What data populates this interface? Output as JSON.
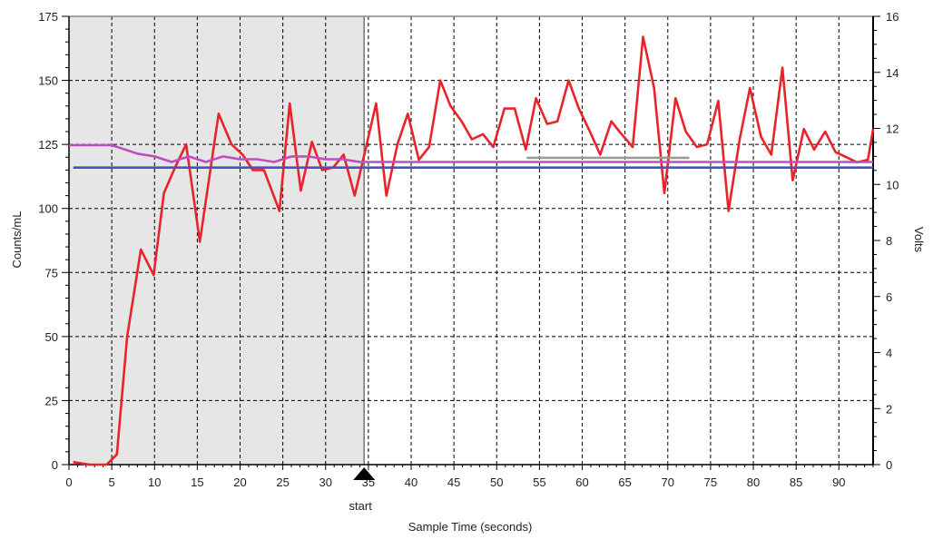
{
  "chart_data": {
    "type": "line",
    "xlabel": "Sample Time (seconds)",
    "ylabel": "Counts/mL",
    "y2label": "Volts",
    "xlim": [
      0,
      94
    ],
    "ylim": [
      0,
      175
    ],
    "y2lim": [
      0,
      16
    ],
    "grid": true,
    "x_ticks": [
      0,
      5,
      10,
      15,
      20,
      25,
      30,
      35,
      40,
      45,
      50,
      55,
      60,
      65,
      70,
      75,
      80,
      85,
      90
    ],
    "y_ticks": [
      0,
      25,
      50,
      75,
      100,
      125,
      150,
      175
    ],
    "y2_ticks": [
      0,
      2,
      4,
      6,
      8,
      10,
      12,
      14,
      16
    ],
    "shaded_region": {
      "x_start": 0,
      "x_end": 34.5
    },
    "start_marker": {
      "x": 34.5,
      "label": "start"
    },
    "series": [
      {
        "axis": "left",
        "color": "#e8232a",
        "x": [
          0.5,
          2.4,
          4.4,
          5.6,
          6.8,
          8.4,
          9.9,
          11.1,
          12.4,
          13.7,
          15.3,
          17.5,
          19.0,
          20.3,
          21.5,
          22.8,
          24.6,
          25.8,
          27.1,
          28.4,
          29.6,
          30.9,
          32.1,
          33.4,
          34.6,
          35.9,
          37.1,
          38.4,
          39.6,
          40.9,
          42.1,
          43.4,
          44.6,
          45.9,
          47.1,
          48.4,
          49.6,
          50.9,
          52.1,
          53.4,
          54.6,
          55.9,
          57.1,
          58.4,
          59.6,
          60.9,
          62.1,
          63.4,
          64.6,
          65.9,
          67.1,
          68.4,
          69.6,
          70.9,
          72.1,
          73.4,
          74.6,
          75.9,
          77.1,
          78.4,
          79.6,
          80.9,
          82.1,
          83.4,
          84.6,
          85.9,
          87.1,
          88.4,
          89.6,
          90.9,
          92.1,
          93.4,
          94.0
        ],
        "values": [
          1,
          0,
          0,
          4,
          50,
          84,
          74,
          106,
          116,
          125,
          87,
          137,
          125,
          121,
          115,
          115,
          99,
          141,
          107,
          126,
          115,
          116,
          121,
          105,
          122,
          141,
          105,
          125,
          137,
          119,
          124,
          150,
          140,
          134,
          127,
          129,
          124,
          139,
          139,
          123,
          143,
          133,
          134,
          150,
          139,
          130,
          121,
          134,
          129,
          124,
          167,
          147,
          106,
          143,
          130,
          124,
          125,
          142,
          99,
          127,
          147,
          128,
          121,
          155,
          111,
          131,
          123,
          130,
          122,
          120,
          118,
          119,
          131
        ]
      },
      {
        "axis": "right",
        "color": "#c04dbf",
        "x": [
          0,
          2,
          5,
          8,
          10,
          12,
          14,
          16,
          18,
          20,
          22,
          24,
          26,
          28,
          30,
          32,
          34,
          40,
          50,
          60,
          70,
          80,
          94
        ],
        "values": [
          11.4,
          11.4,
          11.4,
          11.1,
          11.0,
          10.8,
          11.0,
          10.8,
          11.0,
          10.9,
          10.9,
          10.8,
          11.0,
          11.0,
          10.9,
          10.9,
          10.8,
          10.8,
          10.8,
          10.8,
          10.8,
          10.8,
          10.8
        ]
      },
      {
        "axis": "right",
        "color": "#4c4fbf",
        "x": [
          0.5,
          94
        ],
        "values": [
          10.6,
          10.6
        ]
      },
      {
        "axis": "right",
        "color": "#9a9a9a",
        "x": [
          53.5,
          72.5
        ],
        "values": [
          10.95,
          10.95
        ]
      }
    ]
  }
}
